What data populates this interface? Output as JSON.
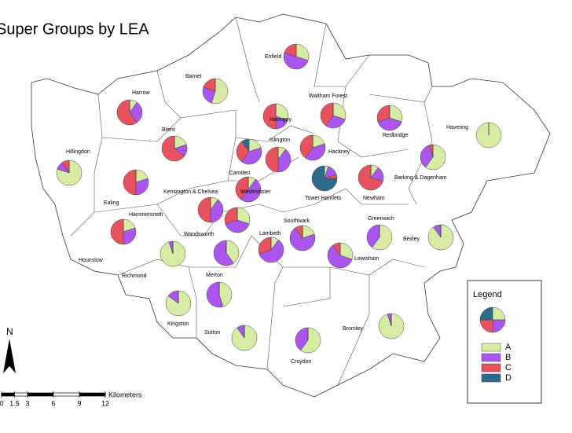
{
  "title": "Super Groups by LEA",
  "boroughs": [
    {
      "label": "Enfield",
      "pie": [
        30,
        50,
        20,
        0
      ]
    },
    {
      "label": "Barnet",
      "pie": [
        55,
        25,
        20,
        0
      ]
    },
    {
      "label": "Harrow",
      "pie": [
        10,
        30,
        60,
        0
      ]
    },
    {
      "label": "Waltham Forest",
      "pie": [
        30,
        30,
        40,
        0
      ]
    },
    {
      "label": "Haringey",
      "pie": [
        30,
        20,
        50,
        0
      ]
    },
    {
      "label": "Redbridge",
      "pie": [
        30,
        40,
        30,
        0
      ]
    },
    {
      "label": "Havering",
      "pie": [
        100,
        0,
        0,
        0
      ]
    },
    {
      "label": "Brent",
      "pie": [
        20,
        15,
        65,
        0
      ]
    },
    {
      "label": "Islington",
      "pie": [
        10,
        40,
        50,
        0
      ]
    },
    {
      "label": "Hackney",
      "pie": [
        20,
        40,
        40,
        0
      ]
    },
    {
      "label": "Hillingdon",
      "pie": [
        80,
        10,
        10,
        0
      ]
    },
    {
      "label": "Camden",
      "pie": [
        20,
        40,
        30,
        10
      ]
    },
    {
      "label": "Barking & Dagenham",
      "pie": [
        60,
        35,
        5,
        0
      ]
    },
    {
      "label": "Tower Hamlets",
      "pie": [
        5,
        15,
        5,
        75
      ]
    },
    {
      "label": "Newham",
      "pie": [
        10,
        20,
        70,
        0
      ]
    },
    {
      "label": "Ealing",
      "pie": [
        20,
        30,
        50,
        0
      ]
    },
    {
      "label": "Kensington & Chelsea",
      "pie": [
        10,
        40,
        50,
        0
      ]
    },
    {
      "label": "Westminster",
      "pie": [
        10,
        50,
        40,
        0
      ]
    },
    {
      "label": "Hammersmith",
      "pie": [
        30,
        40,
        30,
        0
      ]
    },
    {
      "label": "Hounslow",
      "pie": [
        20,
        30,
        50,
        0
      ]
    },
    {
      "label": "Wandsworth",
      "pie": [
        40,
        60,
        0,
        0
      ]
    },
    {
      "label": "Southwark",
      "pie": [
        20,
        70,
        10,
        0
      ]
    },
    {
      "label": "Greenwich",
      "pie": [
        60,
        40,
        0,
        0
      ]
    },
    {
      "label": "Bexley",
      "pie": [
        90,
        10,
        0,
        0
      ]
    },
    {
      "label": "Lambeth",
      "pie": [
        10,
        60,
        30,
        0
      ]
    },
    {
      "label": "Lewisham",
      "pie": [
        30,
        60,
        10,
        0
      ]
    },
    {
      "label": "Richmond",
      "pie": [
        95,
        5,
        0,
        0
      ]
    },
    {
      "label": "Merton",
      "pie": [
        45,
        55,
        0,
        0
      ]
    },
    {
      "label": "Kingston",
      "pie": [
        85,
        15,
        0,
        0
      ]
    },
    {
      "label": "Sutton",
      "pie": [
        90,
        10,
        0,
        0
      ]
    },
    {
      "label": "Bromley",
      "pie": [
        95,
        5,
        0,
        0
      ]
    },
    {
      "label": "Croydon",
      "pie": [
        60,
        40,
        0,
        0
      ]
    }
  ],
  "legend": {
    "title": "Legend",
    "pie": [
      25,
      25,
      25,
      25
    ],
    "items": [
      {
        "label": "A",
        "color": "#d6eca4"
      },
      {
        "label": "B",
        "color": "#a955ee"
      },
      {
        "label": "C",
        "color": "#e8525e"
      },
      {
        "label": "D",
        "color": "#2f6a8c"
      }
    ]
  },
  "scale": {
    "unit": "Kilometers",
    "ticks": [
      0,
      1.5,
      3,
      6,
      9,
      12
    ]
  },
  "north": "N"
}
